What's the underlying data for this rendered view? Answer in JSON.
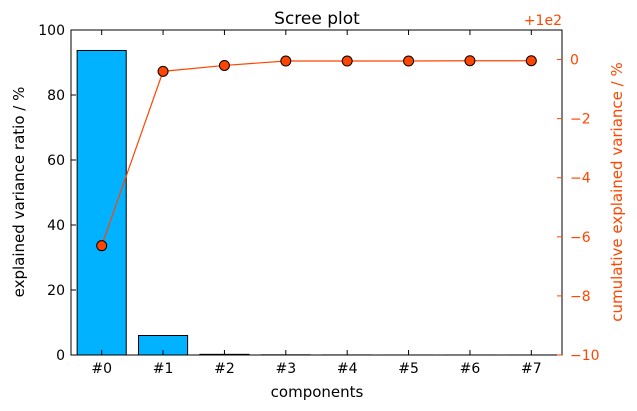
{
  "chart_data": {
    "type": "bar+line",
    "title": "Scree plot",
    "xlabel": "components",
    "ylabel": "explained variance ratio / %",
    "y2label": "cumulative explained variance / %",
    "y2_offset_label": "+1e2",
    "categories": [
      "#0",
      "#1",
      "#2",
      "#3",
      "#4",
      "#5",
      "#6",
      "#7"
    ],
    "ylim": [
      0,
      100
    ],
    "yticks": [
      0,
      20,
      40,
      60,
      80,
      100
    ],
    "y2lim": [
      -10,
      1
    ],
    "y2ticks": [
      0,
      -2,
      -4,
      -6,
      -8,
      -10
    ],
    "series": [
      {
        "kind": "bar",
        "axis": "left",
        "values": [
          93.7,
          6.0,
          0.2,
          0.05,
          0.02,
          0.01,
          0.01,
          0.01
        ],
        "color": "#00b2ff"
      },
      {
        "kind": "line",
        "axis": "right",
        "values": [
          -6.3,
          -0.4,
          -0.2,
          -0.05,
          -0.05,
          -0.05,
          -0.04,
          -0.04
        ],
        "color": "#ff4500"
      }
    ],
    "grid": false
  },
  "colors": {
    "bar_fill": "#00b2ff",
    "line": "#ff4500",
    "right_axis": "#ff4500"
  }
}
